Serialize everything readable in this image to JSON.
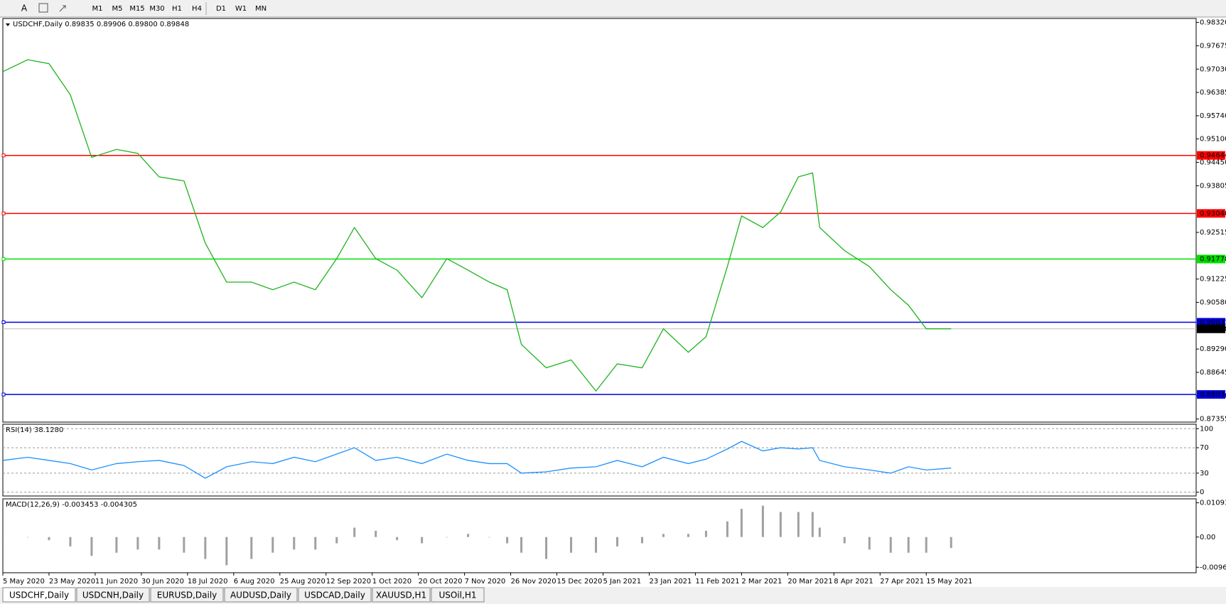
{
  "toolbar": {
    "font_button": "A",
    "timeframes": [
      "M1",
      "M5",
      "M15",
      "M30",
      "H1",
      "H4",
      "D1",
      "W1",
      "MN"
    ]
  },
  "chart_data": [
    {
      "type": "line",
      "title": "USDCHF,Daily 0.89835 0.89906 0.89800 0.89848",
      "x": [
        0,
        7,
        13,
        19,
        25,
        32,
        38,
        44,
        51,
        57,
        63,
        70,
        76,
        82,
        88,
        94,
        99,
        105,
        111,
        118,
        125,
        131,
        137,
        142,
        146,
        153,
        160,
        167,
        173,
        180,
        186,
        193,
        198,
        204,
        208,
        214,
        219,
        224,
        228,
        230,
        237,
        244,
        250,
        255,
        260,
        267
      ],
      "series": [
        {
          "color": "#1db31d",
          "values": [
            0.9696,
            0.9729,
            0.9718,
            0.9632,
            0.9459,
            0.9481,
            0.947,
            0.9405,
            0.9394,
            0.9222,
            0.9114,
            0.9114,
            0.9093,
            0.9114,
            0.9093,
            0.9179,
            0.9265,
            0.9179,
            0.9147,
            0.9071,
            0.9179,
            0.9147,
            0.9114,
            0.9093,
            0.8942,
            0.8877,
            0.8899,
            0.8813,
            0.8888,
            0.8877,
            0.8985,
            0.892,
            0.8963,
            0.9157,
            0.9297,
            0.9265,
            0.9308,
            0.9405,
            0.9416,
            0.9265,
            0.9201,
            0.9157,
            0.9093,
            0.905,
            0.8985,
            0.8985
          ]
        }
      ],
      "xlim": [
        0,
        336
      ],
      "ylim": [
        0.8727,
        0.9843
      ],
      "yticks": [
        {
          "value": 0.9832,
          "label": "0.98320"
        },
        0.97675,
        {
          "value": 0.9703,
          "label": "0.97030"
        },
        0.96385,
        {
          "value": 0.9574,
          "label": "0.95740"
        },
        {
          "value": 0.951,
          "label": "0.95100"
        },
        {
          "value": 0.9445,
          "label": "0.94450"
        },
        0.93805,
        0.92515,
        0.91225,
        {
          "value": 0.9058,
          "label": "0.90580"
        },
        {
          "value": 0.8929,
          "label": "0.89290"
        },
        0.88645,
        {
          "value": 0.88,
          "label": "0.88000"
        },
        0.87355
      ],
      "levels": [
        0.94644,
        {
          "value": 0.9304,
          "label": "0.93040"
        },
        0.91778,
        0.90031,
        0.88034
      ],
      "level_colors": [
        "#ff0000",
        "#ff0000",
        "#00e000",
        "#0000dd",
        "#0000dd"
      ],
      "last_price": 0.89848
    },
    {
      "type": "line",
      "title": "RSI(14) 38.1280",
      "x": [
        0,
        7,
        13,
        19,
        25,
        32,
        38,
        44,
        51,
        57,
        63,
        70,
        76,
        82,
        88,
        94,
        99,
        105,
        111,
        118,
        125,
        131,
        137,
        142,
        146,
        153,
        160,
        167,
        173,
        180,
        186,
        193,
        198,
        204,
        208,
        214,
        219,
        224,
        228,
        230,
        237,
        244,
        250,
        255,
        260,
        267
      ],
      "series": [
        {
          "color": "#1e90ff",
          "values": [
            50,
            55,
            50,
            45,
            35,
            45,
            48,
            50,
            42,
            22,
            40,
            48,
            45,
            55,
            48,
            60,
            70,
            50,
            55,
            45,
            60,
            50,
            45,
            45,
            30,
            32,
            38,
            40,
            50,
            40,
            55,
            45,
            52,
            68,
            80,
            65,
            70,
            68,
            70,
            50,
            40,
            35,
            30,
            40,
            35,
            38
          ]
        }
      ],
      "xlim": [
        0,
        336
      ],
      "ylim": [
        -6,
        107
      ],
      "yticks": [
        0,
        30,
        70,
        100
      ],
      "grid": true
    },
    {
      "type": "bar",
      "title": "MACD(12,26,9) -0.003453 -0.004305",
      "x": [
        0,
        7,
        13,
        19,
        25,
        32,
        38,
        44,
        51,
        57,
        63,
        70,
        76,
        82,
        88,
        94,
        99,
        105,
        111,
        118,
        125,
        131,
        137,
        142,
        146,
        153,
        160,
        167,
        173,
        180,
        186,
        193,
        198,
        204,
        208,
        214,
        219,
        224,
        228,
        230,
        237,
        244,
        250,
        255,
        260,
        267
      ],
      "series": [
        {
          "color": "#a0a0a0",
          "values": [
            0,
            0,
            -0.001,
            -0.003,
            -0.006,
            -0.005,
            -0.004,
            -0.004,
            -0.005,
            -0.007,
            -0.009,
            -0.007,
            -0.005,
            -0.004,
            -0.004,
            -0.002,
            0.003,
            0.002,
            -0.001,
            -0.002,
            0,
            0.001,
            0,
            -0.002,
            -0.005,
            -0.007,
            -0.005,
            -0.005,
            -0.003,
            -0.002,
            0.001,
            0.001,
            0.002,
            0.005,
            0.009,
            0.01,
            0.008,
            0.008,
            0.008,
            0.003,
            -0.002,
            -0.004,
            -0.005,
            -0.005,
            -0.005,
            -0.0035
          ]
        }
      ],
      "xlim": [
        0,
        336
      ],
      "ylim": [
        -0.0114,
        0.0122
      ],
      "yticks": [
        0.010933,
        {
          "value": 0,
          "label": "0.00"
        },
        -0.00965
      ],
      "xticks": [
        {
          "value": 0,
          "label": "5 May 2020"
        },
        {
          "value": 13,
          "label": "23 May 2020"
        },
        {
          "value": 26,
          "label": "11 Jun 2020"
        },
        {
          "value": 39,
          "label": "30 Jun 2020"
        },
        {
          "value": 52,
          "label": "18 Jul 2020"
        },
        {
          "value": 65,
          "label": "6 Aug 2020"
        },
        {
          "value": 78,
          "label": "25 Aug 2020"
        },
        {
          "value": 91,
          "label": "12 Sep 2020"
        },
        {
          "value": 104,
          "label": "1 Oct 2020"
        },
        {
          "value": 117,
          "label": "20 Oct 2020"
        },
        {
          "value": 130,
          "label": "7 Nov 2020"
        },
        {
          "value": 143,
          "label": "26 Nov 2020"
        },
        {
          "value": 156,
          "label": "15 Dec 2020"
        },
        {
          "value": 169,
          "label": "5 Jan 2021"
        },
        {
          "value": 182,
          "label": "23 Jan 2021"
        },
        {
          "value": 195,
          "label": "11 Feb 2021"
        },
        {
          "value": 208,
          "label": "2 Mar 2021"
        },
        {
          "value": 221,
          "label": "20 Mar 2021"
        },
        {
          "value": 234,
          "label": "8 Apr 2021"
        },
        {
          "value": 247,
          "label": "27 Apr 2021"
        },
        {
          "value": 260,
          "label": "15 May 2021"
        }
      ]
    }
  ],
  "tabs": [
    "USDCHF,Daily",
    "USDCNH,Daily",
    "EURUSD,Daily",
    "AUDUSD,Daily",
    "USDCAD,Daily",
    "XAUUSD,H1",
    "USOil,H1"
  ]
}
